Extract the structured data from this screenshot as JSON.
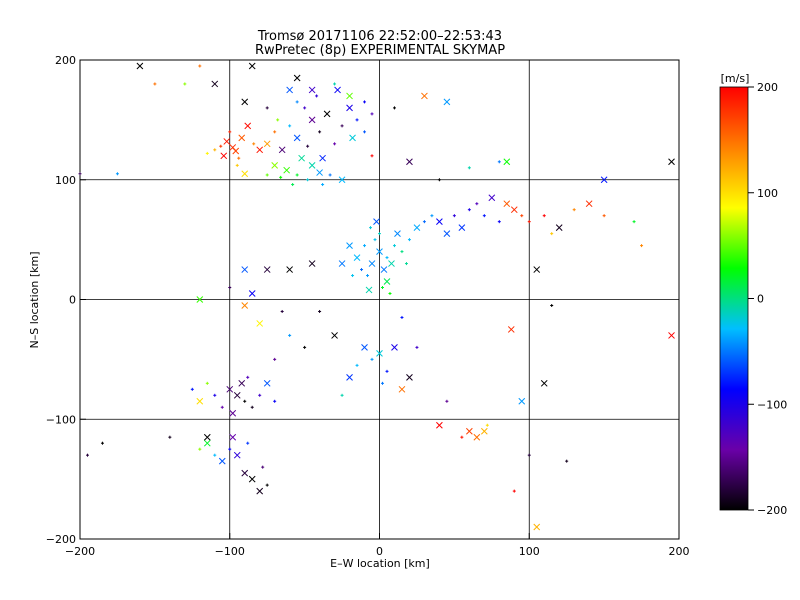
{
  "chart_data": {
    "type": "scatter",
    "title": "Tromsø 20171106 22:52:00–22:53:43",
    "subtitle": "RwPretec (8p) EXPERIMENTAL SKYMAP",
    "xlabel": "E–W location [km]",
    "ylabel": "N–S location [km]",
    "xlim": [
      -200,
      200
    ],
    "ylim": [
      -200,
      200
    ],
    "xticks": [
      "−200",
      "−100",
      "0",
      "100",
      "200"
    ],
    "yticks": [
      "−200",
      "−100",
      "0",
      "100",
      "200"
    ],
    "grid": true,
    "colorbar": {
      "label": "[m/s]",
      "range": [
        -200,
        200
      ],
      "ticks": [
        "200",
        "100",
        "0",
        "−100",
        "−200"
      ],
      "colormap": [
        "#000000",
        "#6a00a8",
        "#0000ff",
        "#00bfff",
        "#00ff00",
        "#ffff00",
        "#ff8000",
        "#ff0000"
      ]
    },
    "point_marker_colormap_note": "",
    "points": [
      [
        -98,
        127,
        180,
        "x"
      ],
      [
        -102,
        132,
        190,
        "x"
      ],
      [
        -96,
        124,
        170,
        "x"
      ],
      [
        -104,
        120,
        200,
        "x"
      ],
      [
        -92,
        135,
        160,
        "x"
      ],
      [
        -100,
        140,
        185,
        "+"
      ],
      [
        -106,
        128,
        175,
        "+"
      ],
      [
        -94,
        118,
        150,
        "+"
      ],
      [
        -110,
        125,
        120,
        "+"
      ],
      [
        -88,
        145,
        195,
        "x"
      ],
      [
        -84,
        130,
        140,
        "+"
      ],
      [
        -115,
        122,
        90,
        "+"
      ],
      [
        -95,
        112,
        110,
        "+"
      ],
      [
        -62,
        108,
        40,
        "x"
      ],
      [
        -55,
        104,
        20,
        "+"
      ],
      [
        -70,
        112,
        60,
        "x"
      ],
      [
        -48,
        100,
        -20,
        "+"
      ],
      [
        -40,
        106,
        -40,
        "x"
      ],
      [
        -33,
        104,
        -50,
        "+"
      ],
      [
        -25,
        100,
        -30,
        "x"
      ],
      [
        -58,
        96,
        10,
        "+"
      ],
      [
        -66,
        102,
        30,
        "+"
      ],
      [
        -45,
        112,
        -10,
        "x"
      ],
      [
        -75,
        104,
        50,
        "+"
      ],
      [
        -52,
        118,
        -5,
        "x"
      ],
      [
        -38,
        96,
        -35,
        "+"
      ],
      [
        -45,
        150,
        -150,
        "x"
      ],
      [
        -40,
        140,
        -190,
        "+"
      ],
      [
        -50,
        160,
        -120,
        "+"
      ],
      [
        -35,
        155,
        -200,
        "x"
      ],
      [
        -25,
        145,
        -170,
        "+"
      ],
      [
        -20,
        160,
        -100,
        "x"
      ],
      [
        -15,
        150,
        -80,
        "+"
      ],
      [
        -30,
        130,
        -140,
        "+"
      ],
      [
        -55,
        135,
        -60,
        "x"
      ],
      [
        -60,
        145,
        -30,
        "+"
      ],
      [
        -42,
        170,
        -110,
        "+"
      ],
      [
        -28,
        175,
        -90,
        "x"
      ],
      [
        -10,
        140,
        -60,
        "+"
      ],
      [
        -5,
        155,
        -130,
        "+"
      ],
      [
        -18,
        135,
        -20,
        "x"
      ],
      [
        -48,
        128,
        -180,
        "+"
      ],
      [
        -65,
        125,
        -160,
        "x"
      ],
      [
        -70,
        140,
        150,
        "+"
      ],
      [
        -75,
        130,
        130,
        "x"
      ],
      [
        -68,
        150,
        60,
        "+"
      ],
      [
        -55,
        165,
        -45,
        "+"
      ],
      [
        -38,
        118,
        -75,
        "x"
      ],
      [
        0,
        40,
        -40,
        "x"
      ],
      [
        5,
        35,
        -30,
        "+"
      ],
      [
        -5,
        30,
        -45,
        "x"
      ],
      [
        10,
        45,
        -20,
        "+"
      ],
      [
        -10,
        45,
        -35,
        "+"
      ],
      [
        3,
        25,
        -50,
        "x"
      ],
      [
        -3,
        50,
        -25,
        "+"
      ],
      [
        8,
        30,
        -10,
        "x"
      ],
      [
        -8,
        20,
        -40,
        "+"
      ],
      [
        15,
        40,
        0,
        "+"
      ],
      [
        -15,
        35,
        -30,
        "x"
      ],
      [
        0,
        55,
        -15,
        "+"
      ],
      [
        5,
        15,
        10,
        "x"
      ],
      [
        -12,
        25,
        -55,
        "+"
      ],
      [
        12,
        55,
        -45,
        "x"
      ],
      [
        -6,
        60,
        -20,
        "+"
      ],
      [
        20,
        50,
        -30,
        "+"
      ],
      [
        -20,
        45,
        -40,
        "x"
      ],
      [
        2,
        10,
        20,
        "+"
      ],
      [
        -2,
        65,
        -60,
        "x"
      ],
      [
        18,
        30,
        -5,
        "+"
      ],
      [
        -18,
        20,
        -25,
        "+"
      ],
      [
        25,
        60,
        -35,
        "x"
      ],
      [
        30,
        65,
        -55,
        "+"
      ],
      [
        35,
        70,
        -40,
        "+"
      ],
      [
        -25,
        30,
        -50,
        "x"
      ],
      [
        7,
        5,
        30,
        "+"
      ],
      [
        -7,
        8,
        -10,
        "x"
      ],
      [
        40,
        65,
        -90,
        "x"
      ],
      [
        50,
        70,
        -110,
        "+"
      ],
      [
        55,
        60,
        -70,
        "x"
      ],
      [
        60,
        75,
        -100,
        "+"
      ],
      [
        65,
        80,
        -130,
        "+"
      ],
      [
        45,
        55,
        -60,
        "x"
      ],
      [
        70,
        70,
        -80,
        "+"
      ],
      [
        75,
        85,
        -120,
        "x"
      ],
      [
        80,
        65,
        -90,
        "+"
      ],
      [
        90,
        75,
        180,
        "x"
      ],
      [
        95,
        70,
        170,
        "+"
      ],
      [
        100,
        65,
        190,
        "+"
      ],
      [
        85,
        80,
        160,
        "x"
      ],
      [
        110,
        70,
        200,
        "+"
      ],
      [
        130,
        75,
        140,
        "+"
      ],
      [
        140,
        80,
        180,
        "x"
      ],
      [
        150,
        70,
        160,
        "+"
      ],
      [
        120,
        60,
        -190,
        "x"
      ],
      [
        115,
        55,
        110,
        "+"
      ],
      [
        -95,
        -80,
        -180,
        "x"
      ],
      [
        -90,
        -85,
        -200,
        "+"
      ],
      [
        -100,
        -75,
        -160,
        "x"
      ],
      [
        -85,
        -90,
        -190,
        "+"
      ],
      [
        -105,
        -90,
        -140,
        "+"
      ],
      [
        -92,
        -70,
        -170,
        "x"
      ],
      [
        -80,
        -80,
        -120,
        "+"
      ],
      [
        -110,
        -80,
        -100,
        "+"
      ],
      [
        -98,
        -95,
        -150,
        "x"
      ],
      [
        -88,
        -65,
        -130,
        "+"
      ],
      [
        -115,
        -70,
        60,
        "+"
      ],
      [
        -120,
        -85,
        100,
        "x"
      ],
      [
        -125,
        -75,
        -80,
        "+"
      ],
      [
        -75,
        -70,
        -60,
        "x"
      ],
      [
        -70,
        -85,
        -90,
        "+"
      ],
      [
        -85,
        -150,
        -200,
        "x"
      ],
      [
        -80,
        -160,
        -190,
        "x"
      ],
      [
        -75,
        -155,
        -200,
        "+"
      ],
      [
        -90,
        -145,
        -180,
        "x"
      ],
      [
        -78,
        -140,
        -160,
        "+"
      ],
      [
        -95,
        -130,
        -110,
        "x"
      ],
      [
        -100,
        -125,
        -90,
        "+"
      ],
      [
        -105,
        -135,
        -60,
        "x"
      ],
      [
        -110,
        -130,
        -30,
        "+"
      ],
      [
        -115,
        -120,
        20,
        "x"
      ],
      [
        -120,
        -125,
        60,
        "+"
      ],
      [
        -88,
        -120,
        -70,
        "+"
      ],
      [
        -98,
        -115,
        -140,
        "x"
      ],
      [
        -10,
        -40,
        -60,
        "x"
      ],
      [
        -5,
        -50,
        -40,
        "+"
      ],
      [
        0,
        -45,
        -20,
        "x"
      ],
      [
        5,
        -60,
        -80,
        "+"
      ],
      [
        -15,
        -55,
        -30,
        "+"
      ],
      [
        10,
        -40,
        -100,
        "x"
      ],
      [
        2,
        -70,
        -50,
        "+"
      ],
      [
        -20,
        -65,
        -70,
        "x"
      ],
      [
        15,
        -75,
        150,
        "x"
      ],
      [
        -25,
        -80,
        -10,
        "+"
      ],
      [
        60,
        -110,
        170,
        "x"
      ],
      [
        65,
        -115,
        150,
        "x"
      ],
      [
        70,
        -110,
        120,
        "x"
      ],
      [
        72,
        -105,
        100,
        "+"
      ],
      [
        55,
        -115,
        190,
        "+"
      ],
      [
        40,
        -105,
        200,
        "x"
      ],
      [
        45,
        -85,
        -150,
        "+"
      ],
      [
        -115,
        -115,
        -200,
        "x"
      ],
      [
        -140,
        -115,
        -190,
        "+"
      ],
      [
        -185,
        -120,
        -200,
        "+"
      ],
      [
        -195,
        -130,
        -180,
        "+"
      ],
      [
        95,
        -85,
        -40,
        "x"
      ],
      [
        110,
        -70,
        -200,
        "x"
      ],
      [
        100,
        -130,
        -180,
        "+"
      ],
      [
        125,
        -135,
        -190,
        "+"
      ],
      [
        105,
        -190,
        120,
        "x"
      ],
      [
        90,
        -160,
        200,
        "+"
      ],
      [
        88,
        -25,
        180,
        "x"
      ],
      [
        195,
        -30,
        200,
        "x"
      ],
      [
        -60,
        25,
        -200,
        "x"
      ],
      [
        -75,
        25,
        -180,
        "x"
      ],
      [
        -90,
        25,
        -60,
        "x"
      ],
      [
        -45,
        30,
        -190,
        "x"
      ],
      [
        -30,
        -30,
        -200,
        "x"
      ],
      [
        -85,
        5,
        -90,
        "x"
      ],
      [
        -100,
        10,
        -170,
        "+"
      ],
      [
        -120,
        0,
        40,
        "x"
      ],
      [
        -90,
        -5,
        140,
        "x"
      ],
      [
        -80,
        -20,
        90,
        "x"
      ],
      [
        -60,
        -30,
        -40,
        "+"
      ],
      [
        -50,
        -40,
        -200,
        "+"
      ],
      [
        -70,
        -50,
        -150,
        "+"
      ],
      [
        -65,
        -10,
        -180,
        "+"
      ],
      [
        -40,
        -10,
        -190,
        "+"
      ],
      [
        -85,
        195,
        -200,
        "x"
      ],
      [
        -110,
        180,
        -190,
        "x"
      ],
      [
        -120,
        195,
        150,
        "+"
      ],
      [
        -130,
        180,
        60,
        "+"
      ],
      [
        -90,
        165,
        -200,
        "x"
      ],
      [
        -75,
        160,
        -180,
        "+"
      ],
      [
        -55,
        185,
        -200,
        "x"
      ],
      [
        -45,
        175,
        -120,
        "x"
      ],
      [
        -60,
        175,
        -60,
        "x"
      ],
      [
        -30,
        180,
        -10,
        "+"
      ],
      [
        -20,
        170,
        50,
        "x"
      ],
      [
        -10,
        165,
        -90,
        "+"
      ],
      [
        10,
        160,
        -200,
        "+"
      ],
      [
        30,
        170,
        150,
        "x"
      ],
      [
        45,
        165,
        -40,
        "x"
      ],
      [
        -160,
        195,
        -200,
        "x"
      ],
      [
        -150,
        180,
        150,
        "+"
      ],
      [
        -175,
        105,
        -40,
        "+"
      ],
      [
        -200,
        105,
        -170,
        "+"
      ],
      [
        -90,
        105,
        100,
        "x"
      ],
      [
        -80,
        125,
        190,
        "x"
      ],
      [
        -5,
        120,
        200,
        "+"
      ],
      [
        20,
        115,
        -170,
        "x"
      ],
      [
        40,
        100,
        -200,
        "+"
      ],
      [
        60,
        110,
        -10,
        "+"
      ],
      [
        80,
        115,
        -50,
        "+"
      ],
      [
        85,
        115,
        30,
        "x"
      ],
      [
        150,
        100,
        -80,
        "x"
      ],
      [
        195,
        115,
        -200,
        "x"
      ],
      [
        170,
        65,
        20,
        "+"
      ],
      [
        175,
        45,
        140,
        "+"
      ],
      [
        105,
        25,
        -200,
        "x"
      ],
      [
        115,
        -5,
        -200,
        "+"
      ],
      [
        20,
        -65,
        -190,
        "x"
      ],
      [
        25,
        -40,
        -120,
        "+"
      ],
      [
        15,
        -15,
        -80,
        "+"
      ]
    ]
  }
}
